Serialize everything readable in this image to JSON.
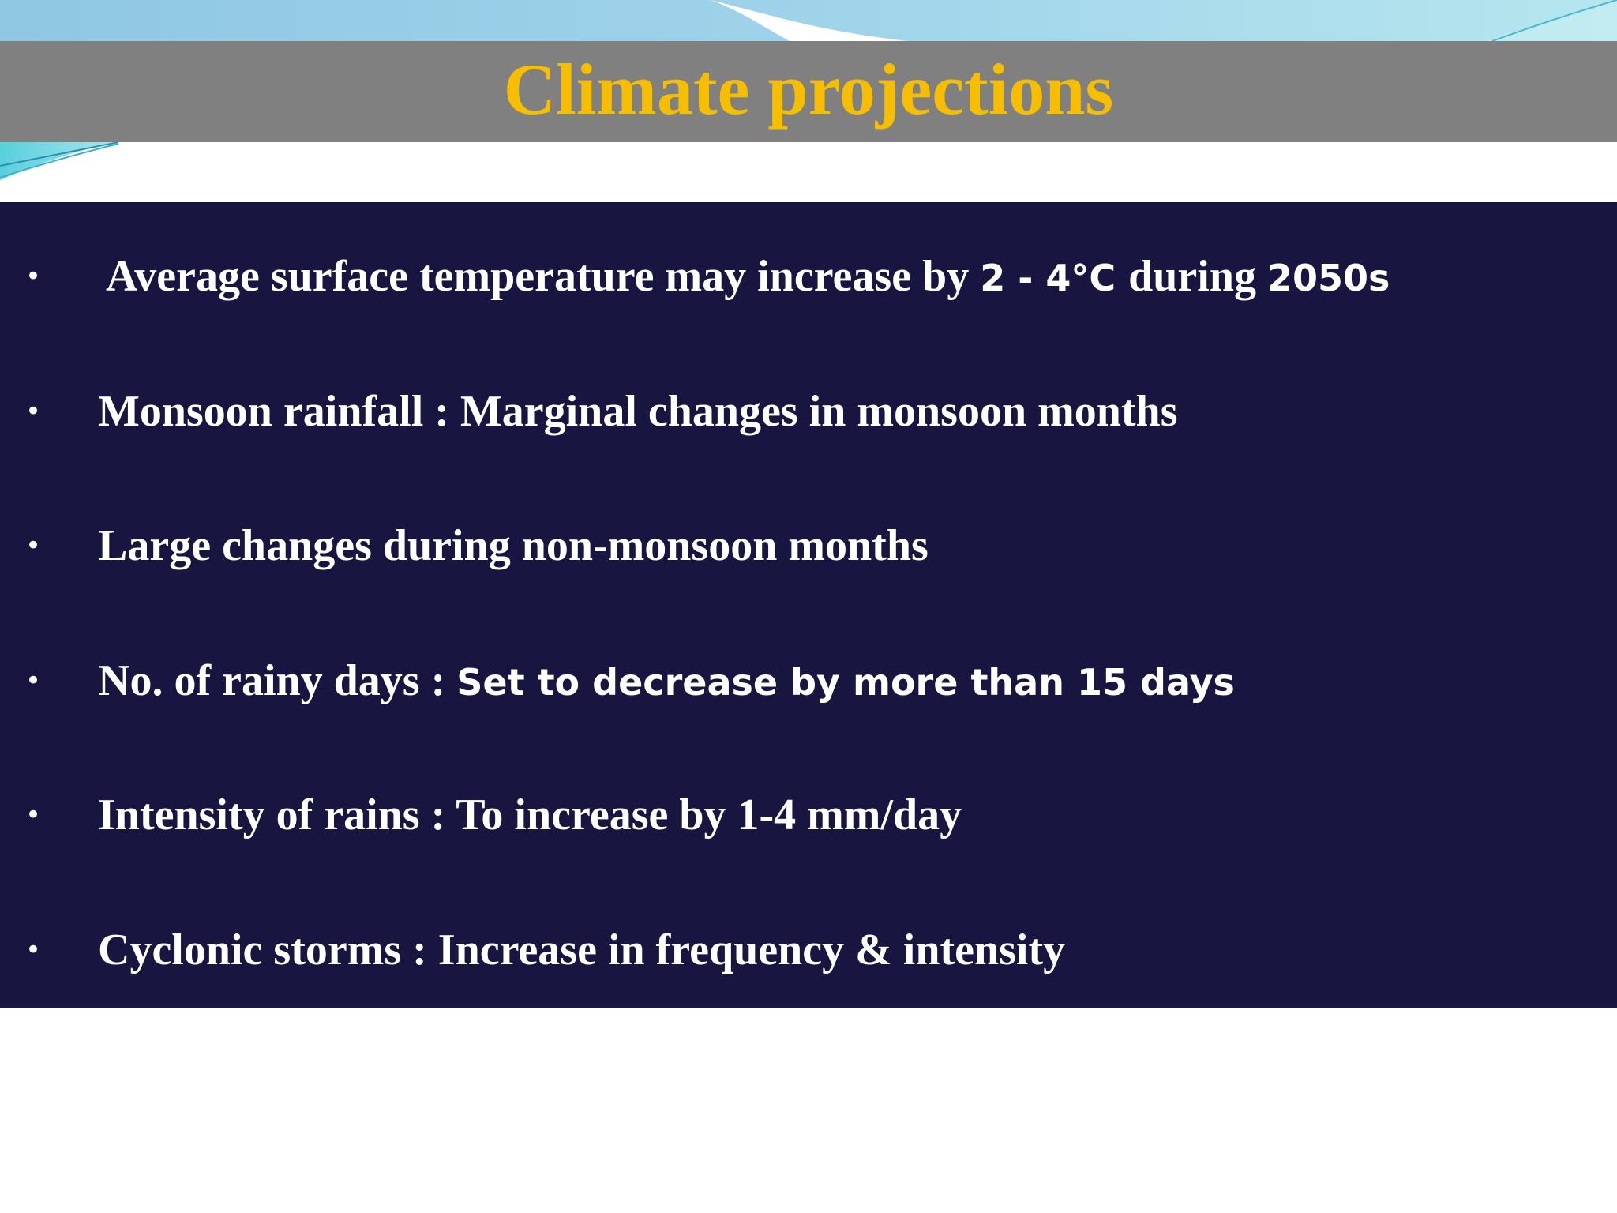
{
  "slide": {
    "title": "Climate projections",
    "colors": {
      "title_text": "#f7be00",
      "title_bar": "#808080",
      "panel": "#181540",
      "bullet_text": "#ffffff"
    },
    "bullets": [
      {
        "serif": "Average surface temperature may increase by ",
        "sans": "2 - 4°C ",
        "serif_after": "during ",
        "sans_after": "2050s"
      },
      {
        "serif": "Monsoon rainfall : Marginal changes in monsoon months"
      },
      {
        "serif": "Large changes during non-monsoon months"
      },
      {
        "serif": "No. of rainy days : ",
        "sans": "Set to decrease by more than 15 days"
      },
      {
        "serif": "Intensity of rains : To increase by 1-4 mm/day"
      },
      {
        "serif": "Cyclonic storms : Increase in frequency & intensity"
      }
    ],
    "bullet_glyph": "•"
  }
}
